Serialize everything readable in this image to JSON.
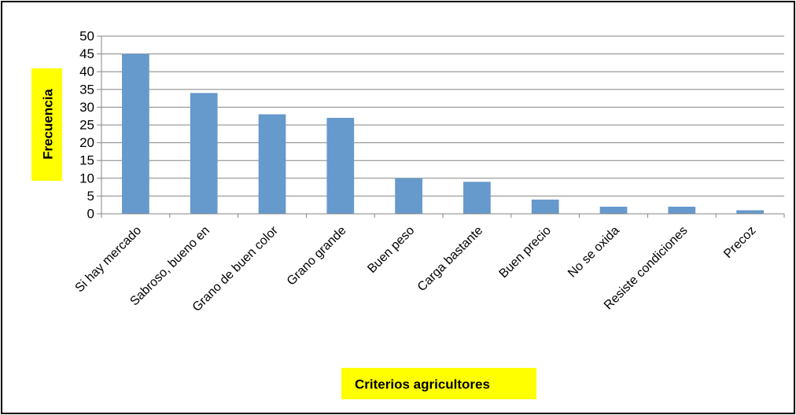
{
  "chart_data": {
    "type": "bar",
    "title": "",
    "xlabel": "Criterios agricultores",
    "ylabel": "Frecuencia",
    "categories": [
      "Si hay mercado",
      "Sabroso, bueno en",
      "Grano de buen color",
      "Grano grande",
      "Buen peso",
      "Carga bastante",
      "Buen precio",
      "No se oxida",
      "Resiste condiciones",
      "Precoz"
    ],
    "series": [
      {
        "values": [
          45,
          34,
          28,
          27,
          10,
          9,
          4,
          2,
          2,
          1
        ]
      }
    ],
    "ylim": [
      0,
      50
    ],
    "yticks": [
      "0",
      "5",
      "10",
      "15",
      "20",
      "25",
      "30",
      "35",
      "40",
      "45",
      "50"
    ],
    "grid": true,
    "legend": "none",
    "colors": {
      "bar": "#6699cc",
      "grid": "#868686",
      "axis": "#868686",
      "label_highlight": "#ffff00"
    }
  }
}
